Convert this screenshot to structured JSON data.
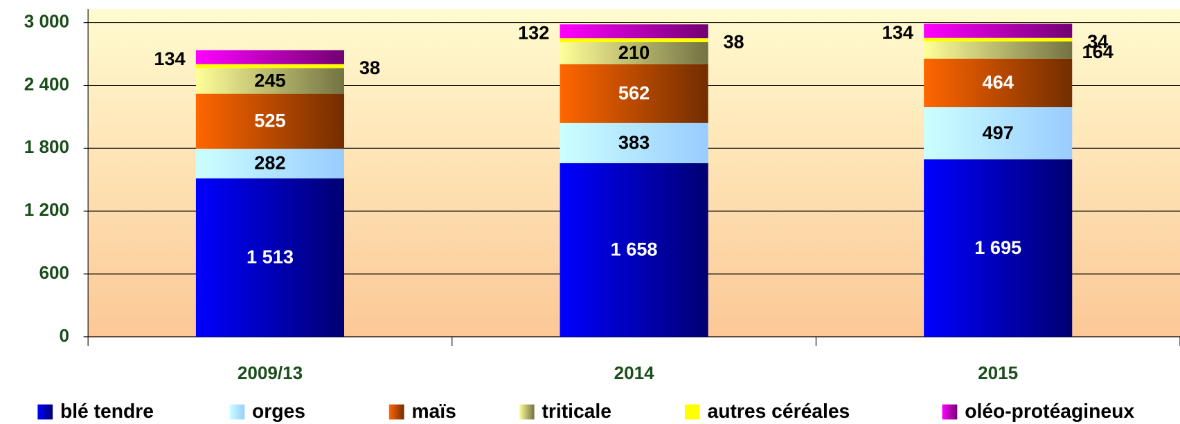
{
  "chart_data": {
    "type": "stacked_bar",
    "categories": [
      "2009/13",
      "2014",
      "2015"
    ],
    "series": [
      {
        "name": "blé tendre",
        "color": "#0000ff",
        "values": [
          1513,
          1658,
          1695
        ],
        "value_labels": [
          "1 513",
          "1 658",
          "1 695"
        ]
      },
      {
        "name": "orges",
        "color": "#ccffff",
        "values": [
          282,
          383,
          497
        ]
      },
      {
        "name": "maïs",
        "color": "#ff6600",
        "values": [
          525,
          562,
          464
        ]
      },
      {
        "name": "triticale",
        "color": "#ffff99",
        "values": [
          245,
          210,
          164
        ]
      },
      {
        "name": "autres céréales",
        "color": "#ffff00",
        "values": [
          38,
          38,
          34
        ]
      },
      {
        "name": "oléo-protéagineux",
        "color": "#ff00ff",
        "values": [
          134,
          132,
          134
        ]
      }
    ],
    "ylim": [
      0,
      3000
    ],
    "yticks": [
      0,
      600,
      {
        "value": 1200,
        "label": "1 200"
      },
      {
        "value": 1800,
        "label": "1 800"
      },
      {
        "value": 2400,
        "label": "2 400"
      },
      {
        "value": 3000,
        "label": "3 000"
      }
    ],
    "grid": true,
    "legend": "bottom"
  }
}
